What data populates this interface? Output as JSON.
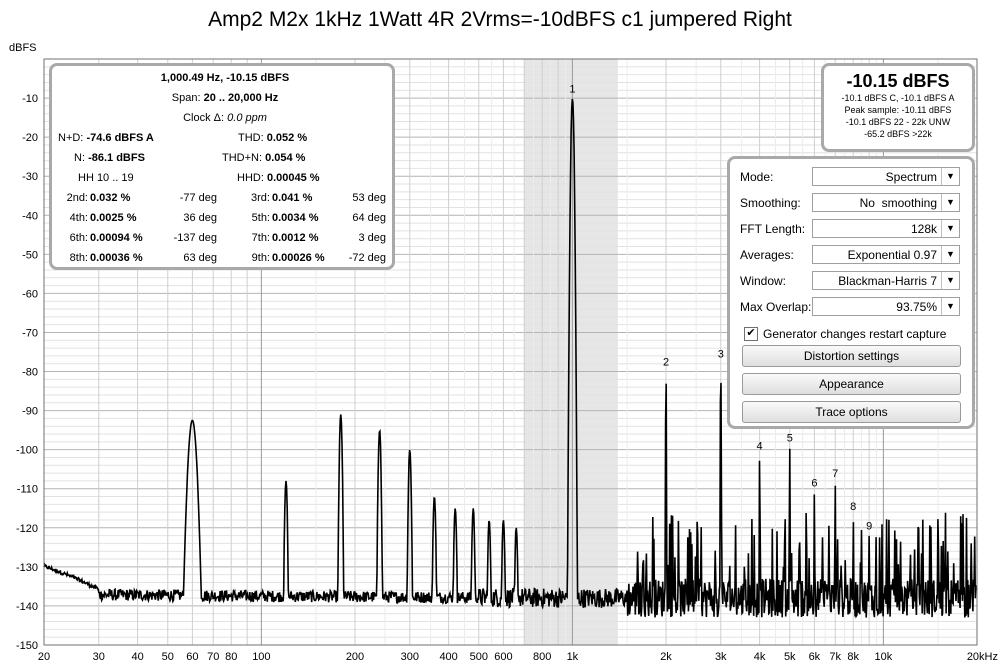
{
  "title": "Amp2 M2x 1kHz 1Watt 4R 2Vrms=-10dBFS c1 jumpered Right",
  "y_unit_label": "dBFS",
  "info": {
    "line1": "1,000.49 Hz, -10.15 dBFS",
    "span_label": "Span:",
    "span_value": "20 .. 20,000 Hz",
    "clock_label": "Clock Δ:",
    "clock_value": "0.0 ppm",
    "nd_label": "N+D:",
    "nd_value": "-74.6 dBFS A",
    "thd_label": "THD:",
    "thd_value": "0.052 %",
    "n_label": "N:",
    "n_value": "-86.1 dBFS",
    "thdn_label": "THD+N:",
    "thdn_value": "0.054 %",
    "hh_label": "HH 10 .. 19",
    "hhd_label": "HHD:",
    "hhd_value": "0.00045 %",
    "harmonics": [
      {
        "label": "2nd:",
        "value": "0.032 %",
        "deg": "-77 deg"
      },
      {
        "label": "3rd:",
        "value": "0.041 %",
        "deg": "53 deg"
      },
      {
        "label": "4th:",
        "value": "0.0025 %",
        "deg": "36 deg"
      },
      {
        "label": "5th:",
        "value": "0.0034 %",
        "deg": "64 deg"
      },
      {
        "label": "6th:",
        "value": "0.00094 %",
        "deg": "-137 deg"
      },
      {
        "label": "7th:",
        "value": "0.0012 %",
        "deg": "3 deg"
      },
      {
        "label": "8th:",
        "value": "0.00036 %",
        "deg": "63 deg"
      },
      {
        "label": "9th:",
        "value": "0.00026 %",
        "deg": "-72 deg"
      }
    ]
  },
  "level": {
    "main": "-10.15 dBFS",
    "l1": "-10.1 dBFS C, -10.1 dBFS A",
    "l2": "Peak sample: -10.11 dBFS",
    "l3": "-10.1 dBFS 22 - 22k UNW",
    "l4": "-65.2 dBFS >22k"
  },
  "controls": {
    "mode": {
      "label": "Mode:",
      "value": "Spectrum"
    },
    "smoothing": {
      "label": "Smoothing:",
      "value": "No  smoothing"
    },
    "fft": {
      "label": "FFT Length:",
      "value": "128k"
    },
    "averages": {
      "label": "Averages:",
      "value": "Exponential 0.97"
    },
    "window": {
      "label": "Window:",
      "value": "Blackman-Harris 7"
    },
    "overlap": {
      "label": "Max Overlap:",
      "value": "93.75%"
    },
    "checkbox_label": "Generator changes restart capture",
    "checkbox_checked": true,
    "distortion_button": "Distortion settings",
    "appearance_button": "Appearance",
    "trace_button": "Trace options"
  },
  "chart_data": {
    "type": "line",
    "x_scale": "log",
    "xlim": [
      20,
      20000
    ],
    "ylim": [
      -150,
      0
    ],
    "ylabel": "dBFS",
    "xlabel": "",
    "x_tick_labels": [
      "20",
      "30",
      "40",
      "50",
      "60",
      "70",
      "80",
      "100",
      "200",
      "300",
      "400",
      "500",
      "600",
      "800",
      "1k",
      "2k",
      "3k",
      "4k",
      "5k",
      "6k",
      "7k",
      "8k",
      "10k",
      "20kHz"
    ],
    "x_tick_values": [
      20,
      30,
      40,
      50,
      60,
      70,
      80,
      100,
      200,
      300,
      400,
      500,
      600,
      800,
      1000,
      2000,
      3000,
      4000,
      5000,
      6000,
      7000,
      8000,
      10000,
      20000
    ],
    "y_ticks": [
      -10,
      -20,
      -30,
      -40,
      -50,
      -60,
      -70,
      -80,
      -90,
      -100,
      -110,
      -120,
      -130,
      -140,
      -150
    ],
    "highlight_band": [
      700,
      1400
    ],
    "noise_floor": [
      [
        20,
        -137
      ],
      [
        100,
        -137.5
      ],
      [
        1000,
        -138
      ],
      [
        3000,
        -138
      ],
      [
        20000,
        -138
      ]
    ],
    "peaks": [
      {
        "f": 22,
        "db": -133
      },
      {
        "f": 60,
        "db": -92.5
      },
      {
        "f": 120,
        "db": -108
      },
      {
        "f": 180,
        "db": -91
      },
      {
        "f": 240,
        "db": -95
      },
      {
        "f": 300,
        "db": -100
      },
      {
        "f": 360,
        "db": -112
      },
      {
        "f": 420,
        "db": -115
      },
      {
        "f": 480,
        "db": -115
      },
      {
        "f": 540,
        "db": -118
      },
      {
        "f": 600,
        "db": -118
      },
      {
        "f": 660,
        "db": -120
      },
      {
        "f": 1000.49,
        "db": -10.15
      },
      {
        "f": 2000,
        "db": -80
      },
      {
        "f": 3000,
        "db": -78
      },
      {
        "f": 4000,
        "db": -101.5
      },
      {
        "f": 5000,
        "db": -99.5
      },
      {
        "f": 6000,
        "db": -111
      },
      {
        "f": 7000,
        "db": -108.5
      },
      {
        "f": 8000,
        "db": -117
      },
      {
        "f": 9000,
        "db": -122
      },
      {
        "f": 15000,
        "db": -114
      }
    ],
    "markers": [
      {
        "label": "1",
        "f": 1000,
        "db": -10.15
      },
      {
        "label": "2",
        "f": 2000,
        "db": -80
      },
      {
        "label": "3",
        "f": 3000,
        "db": -78
      },
      {
        "label": "4",
        "f": 4000,
        "db": -101.5
      },
      {
        "label": "5",
        "f": 5000,
        "db": -99.5
      },
      {
        "label": "6",
        "f": 6000,
        "db": -111
      },
      {
        "label": "7",
        "f": 7000,
        "db": -108.5
      },
      {
        "label": "8",
        "f": 8000,
        "db": -117
      },
      {
        "label": "9",
        "f": 9000,
        "db": -122
      }
    ]
  }
}
